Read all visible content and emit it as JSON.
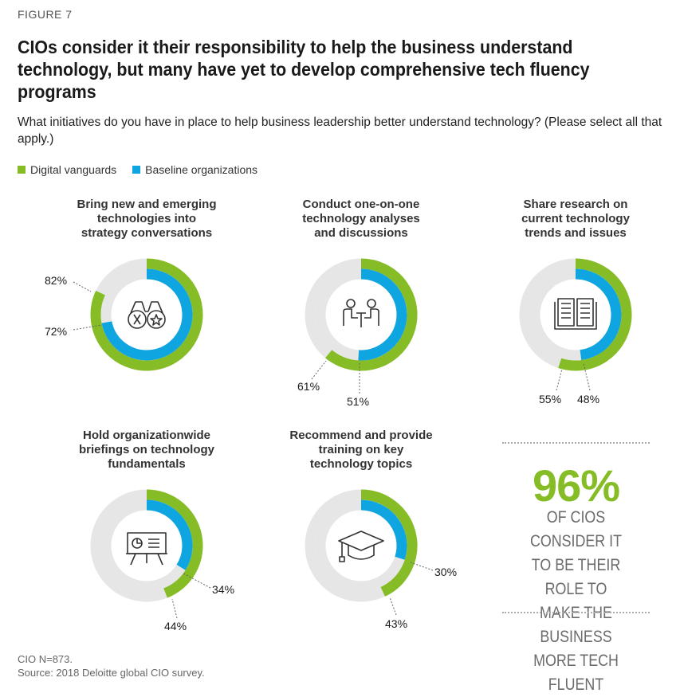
{
  "figure_label": "FIGURE 7",
  "title": "CIOs consider it their responsibility to help the business understand technology, but many have yet to develop comprehensive tech fluency programs",
  "subtitle": "What initiatives do you have in place to help business leadership better understand technology? (Please select all that apply.)",
  "legend": [
    {
      "label": "Digital vanguards",
      "color": "#86bc25"
    },
    {
      "label": "Baseline organizations",
      "color": "#0ea5e0"
    }
  ],
  "colors": {
    "vanguard": "#86bc25",
    "baseline": "#0ea5e0",
    "track": "#e6e6e6",
    "icon": "#333333"
  },
  "chart_data": [
    {
      "type": "pie",
      "title": "Bring new and emerging technologies into strategy conversations",
      "icon": "binoculars-icon",
      "series": [
        {
          "name": "Digital vanguards",
          "value": 82,
          "label": "82%"
        },
        {
          "name": "Baseline organizations",
          "value": 72,
          "label": "72%"
        }
      ]
    },
    {
      "type": "pie",
      "title": "Conduct one-on-one technology analyses and discussions",
      "icon": "meeting-icon",
      "series": [
        {
          "name": "Digital vanguards",
          "value": 61,
          "label": "61%"
        },
        {
          "name": "Baseline organizations",
          "value": 51,
          "label": "51%"
        }
      ]
    },
    {
      "type": "pie",
      "title": "Share research on current technology trends and issues",
      "icon": "open-book-icon",
      "series": [
        {
          "name": "Digital vanguards",
          "value": 55,
          "label": "55%"
        },
        {
          "name": "Baseline organizations",
          "value": 48,
          "label": "48%"
        }
      ]
    },
    {
      "type": "pie",
      "title": "Hold organizationwide briefings on technology fundamentals",
      "icon": "presentation-board-icon",
      "series": [
        {
          "name": "Digital vanguards",
          "value": 44,
          "label": "44%"
        },
        {
          "name": "Baseline organizations",
          "value": 34,
          "label": "34%"
        }
      ]
    },
    {
      "type": "pie",
      "title": "Recommend and provide training on key technology topics",
      "icon": "graduation-cap-icon",
      "series": [
        {
          "name": "Digital vanguards",
          "value": 43,
          "label": "43%"
        },
        {
          "name": "Baseline organizations",
          "value": 30,
          "label": "30%"
        }
      ]
    }
  ],
  "callout": {
    "value": "96%",
    "text": "OF CIOS CONSIDER IT TO BE THEIR ROLE TO MAKE THE BUSINESS MORE TECH FLUENT"
  },
  "footnote": {
    "sample": "CIO N=873.",
    "source": "Source: 2018 Deloitte global CIO survey."
  }
}
